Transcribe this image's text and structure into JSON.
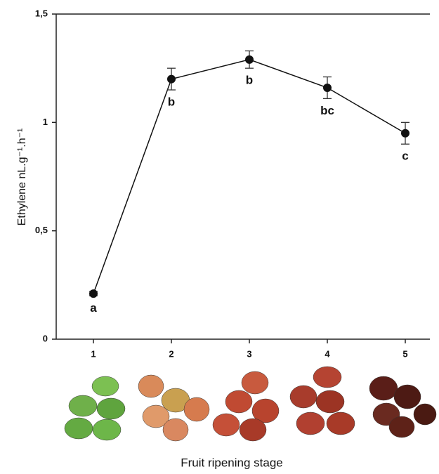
{
  "chart_data": {
    "type": "line",
    "y_label": "Ethylene nL.g⁻¹.h⁻¹",
    "x_label": "Fruit ripening stage",
    "categories": [
      "1",
      "2",
      "3",
      "4",
      "5"
    ],
    "series": [
      {
        "color": "#111111",
        "values": [
          0.21,
          1.2,
          1.29,
          1.16,
          0.95
        ],
        "errors": [
          0.01,
          0.05,
          0.04,
          0.05,
          0.05
        ],
        "annotations": [
          "a",
          "b",
          "b",
          "bc",
          "c"
        ]
      }
    ],
    "ylim": [
      0,
      1.5
    ],
    "yticks": [
      0,
      {
        "value": 0.5,
        "label": "0,5"
      },
      1,
      {
        "value": 1.5,
        "label": "1,5"
      }
    ]
  }
}
